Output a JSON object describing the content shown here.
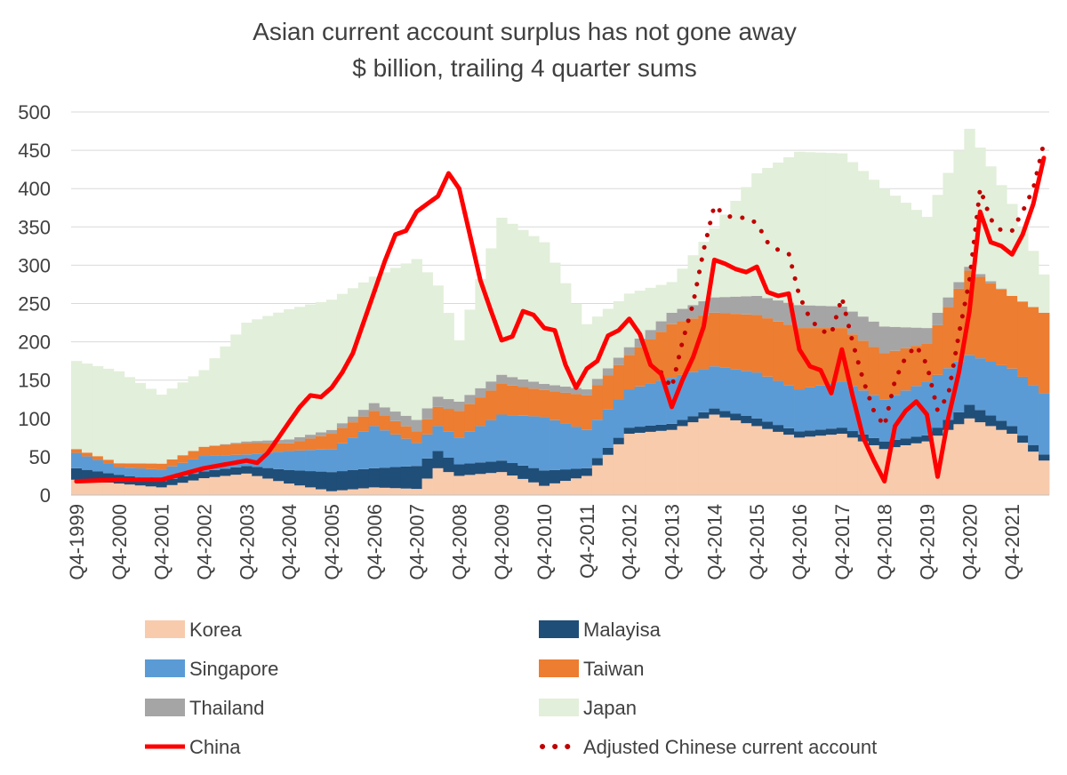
{
  "chart_data": {
    "type": "area",
    "title": "Asian current account surplus has not gone away",
    "subtitle": "$ billion, trailing 4 quarter sums",
    "ylim": [
      0,
      500
    ],
    "yticks": [
      0,
      50,
      100,
      150,
      200,
      250,
      300,
      350,
      400,
      450,
      500
    ],
    "x_tick_labels": [
      "Q4-1999",
      "Q4-2000",
      "Q4-2001",
      "Q4-2002",
      "Q4-2003",
      "Q4-2004",
      "Q4-2005",
      "Q4-2006",
      "Q4-2007",
      "Q4-2008",
      "Q4-2009",
      "Q4-2010",
      "Q4-2011",
      "Q4-2012",
      "Q4-2013",
      "Q4-2014",
      "Q4-2015",
      "Q4-2016",
      "Q4-2017",
      "Q4-2018",
      "Q4-2019",
      "Q4-2020",
      "Q4-2021"
    ],
    "x_start": "Q4-1999",
    "x_end": "Q3-2022",
    "grid": true,
    "legend_position": "bottom",
    "stacked_series": [
      {
        "name": "Korea",
        "color": "#F8CBAD",
        "keys": [
          [
            0,
            20
          ],
          [
            4,
            15
          ],
          [
            8,
            10
          ],
          [
            12,
            22
          ],
          [
            16,
            28
          ],
          [
            20,
            15
          ],
          [
            24,
            5
          ],
          [
            28,
            10
          ],
          [
            32,
            8
          ],
          [
            34,
            35
          ],
          [
            36,
            25
          ],
          [
            40,
            30
          ],
          [
            44,
            12
          ],
          [
            48,
            25
          ],
          [
            52,
            80
          ],
          [
            56,
            85
          ],
          [
            60,
            105
          ],
          [
            64,
            90
          ],
          [
            68,
            75
          ],
          [
            72,
            80
          ],
          [
            76,
            60
          ],
          [
            80,
            70
          ],
          [
            84,
            100
          ],
          [
            86,
            90
          ],
          [
            88,
            80
          ],
          [
            91,
            45
          ]
        ]
      },
      {
        "name": "Malayisa",
        "color": "#1F4E79",
        "keys": [
          [
            0,
            15
          ],
          [
            8,
            8
          ],
          [
            16,
            10
          ],
          [
            24,
            25
          ],
          [
            28,
            25
          ],
          [
            32,
            30
          ],
          [
            36,
            15
          ],
          [
            40,
            15
          ],
          [
            44,
            20
          ],
          [
            48,
            10
          ],
          [
            52,
            8
          ],
          [
            56,
            8
          ],
          [
            60,
            8
          ],
          [
            64,
            10
          ],
          [
            68,
            8
          ],
          [
            72,
            8
          ],
          [
            76,
            10
          ],
          [
            80,
            8
          ],
          [
            84,
            18
          ],
          [
            88,
            10
          ],
          [
            91,
            8
          ]
        ]
      },
      {
        "name": "Singapore",
        "color": "#5B9BD5",
        "keys": [
          [
            0,
            20
          ],
          [
            4,
            10
          ],
          [
            8,
            15
          ],
          [
            12,
            20
          ],
          [
            16,
            15
          ],
          [
            20,
            25
          ],
          [
            24,
            30
          ],
          [
            28,
            55
          ],
          [
            32,
            30
          ],
          [
            36,
            35
          ],
          [
            40,
            60
          ],
          [
            44,
            70
          ],
          [
            48,
            50
          ],
          [
            52,
            50
          ],
          [
            56,
            60
          ],
          [
            60,
            55
          ],
          [
            64,
            60
          ],
          [
            68,
            55
          ],
          [
            72,
            60
          ],
          [
            76,
            55
          ],
          [
            80,
            70
          ],
          [
            84,
            65
          ],
          [
            88,
            75
          ],
          [
            91,
            80
          ]
        ]
      },
      {
        "name": "Taiwan",
        "color": "#ED7D31",
        "keys": [
          [
            0,
            5
          ],
          [
            4,
            5
          ],
          [
            8,
            8
          ],
          [
            12,
            12
          ],
          [
            16,
            15
          ],
          [
            20,
            10
          ],
          [
            24,
            20
          ],
          [
            28,
            20
          ],
          [
            32,
            15
          ],
          [
            36,
            35
          ],
          [
            40,
            40
          ],
          [
            44,
            35
          ],
          [
            48,
            45
          ],
          [
            52,
            45
          ],
          [
            56,
            70
          ],
          [
            60,
            70
          ],
          [
            64,
            75
          ],
          [
            68,
            80
          ],
          [
            72,
            70
          ],
          [
            76,
            60
          ],
          [
            80,
            50
          ],
          [
            84,
            110
          ],
          [
            88,
            95
          ],
          [
            91,
            105
          ]
        ]
      },
      {
        "name": "Thailand",
        "color": "#A5A5A5",
        "keys": [
          [
            0,
            0
          ],
          [
            4,
            0
          ],
          [
            8,
            0
          ],
          [
            12,
            0
          ],
          [
            16,
            2
          ],
          [
            20,
            5
          ],
          [
            24,
            5
          ],
          [
            28,
            10
          ],
          [
            32,
            15
          ],
          [
            36,
            12
          ],
          [
            40,
            12
          ],
          [
            44,
            8
          ],
          [
            48,
            8
          ],
          [
            52,
            10
          ],
          [
            56,
            15
          ],
          [
            60,
            20
          ],
          [
            64,
            25
          ],
          [
            68,
            30
          ],
          [
            72,
            28
          ],
          [
            76,
            35
          ],
          [
            80,
            20
          ],
          [
            84,
            5
          ],
          [
            88,
            0
          ],
          [
            91,
            0
          ]
        ]
      },
      {
        "name": "Japan",
        "color": "#E2EFDA",
        "keys": [
          [
            0,
            115
          ],
          [
            4,
            120
          ],
          [
            8,
            90
          ],
          [
            12,
            100
          ],
          [
            16,
            155
          ],
          [
            20,
            170
          ],
          [
            24,
            170
          ],
          [
            28,
            165
          ],
          [
            32,
            210
          ],
          [
            36,
            80
          ],
          [
            40,
            205
          ],
          [
            44,
            185
          ],
          [
            48,
            85
          ],
          [
            52,
            70
          ],
          [
            56,
            40
          ],
          [
            60,
            90
          ],
          [
            64,
            160
          ],
          [
            68,
            200
          ],
          [
            72,
            200
          ],
          [
            76,
            180
          ],
          [
            80,
            145
          ],
          [
            84,
            180
          ],
          [
            88,
            120
          ],
          [
            91,
            50
          ]
        ]
      }
    ],
    "line_series": [
      {
        "name": "China",
        "color": "#FF0000",
        "style": "solid",
        "keys": [
          [
            0,
            18
          ],
          [
            4,
            20
          ],
          [
            8,
            20
          ],
          [
            12,
            35
          ],
          [
            16,
            45
          ],
          [
            17,
            42
          ],
          [
            18,
            55
          ],
          [
            20,
            95
          ],
          [
            21,
            115
          ],
          [
            22,
            130
          ],
          [
            23,
            128
          ],
          [
            24,
            140
          ],
          [
            25,
            160
          ],
          [
            26,
            185
          ],
          [
            27,
            225
          ],
          [
            28,
            265
          ],
          [
            29,
            305
          ],
          [
            30,
            340
          ],
          [
            31,
            345
          ],
          [
            32,
            370
          ],
          [
            33,
            380
          ],
          [
            34,
            390
          ],
          [
            35,
            420
          ],
          [
            36,
            400
          ],
          [
            37,
            340
          ],
          [
            38,
            280
          ],
          [
            39,
            240
          ],
          [
            40,
            202
          ],
          [
            41,
            207
          ],
          [
            42,
            240
          ],
          [
            43,
            235
          ],
          [
            44,
            218
          ],
          [
            45,
            215
          ],
          [
            46,
            170
          ],
          [
            47,
            140
          ],
          [
            48,
            165
          ],
          [
            49,
            175
          ],
          [
            50,
            208
          ],
          [
            51,
            215
          ],
          [
            52,
            230
          ],
          [
            53,
            210
          ],
          [
            54,
            170
          ],
          [
            55,
            158
          ],
          [
            56,
            115
          ],
          [
            57,
            150
          ],
          [
            58,
            180
          ],
          [
            59,
            220
          ],
          [
            60,
            307
          ],
          [
            61,
            302
          ],
          [
            62,
            295
          ],
          [
            63,
            291
          ],
          [
            64,
            298
          ],
          [
            65,
            265
          ],
          [
            66,
            260
          ],
          [
            67,
            263
          ],
          [
            68,
            190
          ],
          [
            69,
            168
          ],
          [
            70,
            163
          ],
          [
            71,
            133
          ],
          [
            72,
            190
          ],
          [
            73,
            130
          ],
          [
            74,
            75
          ],
          [
            75,
            45
          ],
          [
            76,
            18
          ],
          [
            77,
            90
          ],
          [
            78,
            110
          ],
          [
            79,
            122
          ],
          [
            80,
            105
          ],
          [
            81,
            24
          ],
          [
            82,
            100
          ],
          [
            83,
            160
          ],
          [
            84,
            240
          ],
          [
            85,
            370
          ],
          [
            86,
            330
          ],
          [
            87,
            325
          ],
          [
            88,
            314
          ],
          [
            89,
            340
          ],
          [
            90,
            380
          ],
          [
            91,
            440
          ]
        ]
      },
      {
        "name": "Adjusted Chinese current account",
        "color": "#C00000",
        "style": "dotted",
        "keys": [
          [
            0,
            18
          ],
          [
            4,
            20
          ],
          [
            8,
            20
          ],
          [
            12,
            35
          ],
          [
            16,
            45
          ],
          [
            17,
            42
          ],
          [
            18,
            55
          ],
          [
            20,
            95
          ],
          [
            21,
            115
          ],
          [
            22,
            130
          ],
          [
            23,
            128
          ],
          [
            24,
            140
          ],
          [
            25,
            160
          ],
          [
            26,
            185
          ],
          [
            27,
            225
          ],
          [
            28,
            265
          ],
          [
            29,
            305
          ],
          [
            30,
            340
          ],
          [
            31,
            345
          ],
          [
            32,
            370
          ],
          [
            33,
            380
          ],
          [
            34,
            390
          ],
          [
            35,
            420
          ],
          [
            36,
            400
          ],
          [
            37,
            340
          ],
          [
            38,
            280
          ],
          [
            39,
            240
          ],
          [
            40,
            202
          ],
          [
            41,
            207
          ],
          [
            42,
            240
          ],
          [
            43,
            235
          ],
          [
            44,
            218
          ],
          [
            45,
            215
          ],
          [
            46,
            170
          ],
          [
            47,
            140
          ],
          [
            48,
            165
          ],
          [
            49,
            175
          ],
          [
            50,
            208
          ],
          [
            51,
            215
          ],
          [
            52,
            230
          ],
          [
            53,
            210
          ],
          [
            54,
            170
          ],
          [
            55,
            160
          ],
          [
            56,
            140
          ],
          [
            57,
            200
          ],
          [
            58,
            250
          ],
          [
            59,
            320
          ],
          [
            60,
            378
          ],
          [
            61,
            365
          ],
          [
            62,
            362
          ],
          [
            63,
            362
          ],
          [
            64,
            355
          ],
          [
            65,
            330
          ],
          [
            66,
            320
          ],
          [
            67,
            315
          ],
          [
            68,
            260
          ],
          [
            69,
            230
          ],
          [
            70,
            215
          ],
          [
            71,
            210
          ],
          [
            72,
            258
          ],
          [
            73,
            200
          ],
          [
            74,
            150
          ],
          [
            75,
            110
          ],
          [
            76,
            90
          ],
          [
            77,
            150
          ],
          [
            78,
            180
          ],
          [
            79,
            195
          ],
          [
            80,
            170
          ],
          [
            81,
            110
          ],
          [
            82,
            130
          ],
          [
            83,
            210
          ],
          [
            84,
            280
          ],
          [
            85,
            400
          ],
          [
            86,
            360
          ],
          [
            87,
            345
          ],
          [
            88,
            345
          ],
          [
            89,
            370
          ],
          [
            90,
            400
          ],
          [
            91,
            460
          ]
        ]
      }
    ]
  }
}
